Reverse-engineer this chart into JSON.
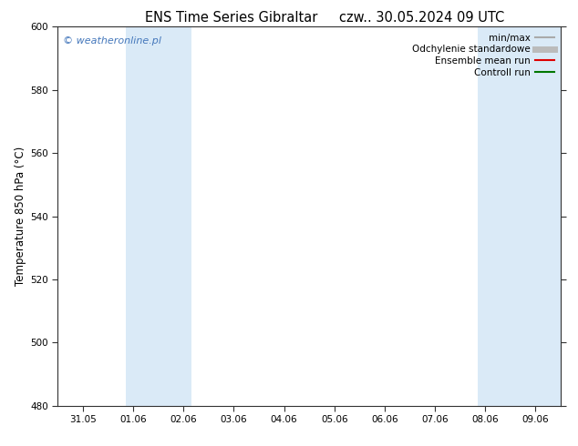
{
  "title_left": "ENS Time Series Gibraltar",
  "title_right": "czw.. 30.05.2024 09 UTC",
  "ylabel": "Temperature 850 hPa (°C)",
  "ylim": [
    480,
    600
  ],
  "yticks": [
    480,
    500,
    520,
    540,
    560,
    580,
    600
  ],
  "x_tick_labels": [
    "31.05",
    "01.06",
    "02.06",
    "03.06",
    "04.06",
    "05.06",
    "06.06",
    "07.06",
    "08.06",
    "09.06"
  ],
  "x_tick_positions": [
    0,
    1,
    2,
    3,
    4,
    5,
    6,
    7,
    8,
    9
  ],
  "xlim": [
    -0.5,
    9.5
  ],
  "background_color": "#ffffff",
  "plot_bg_color": "#ffffff",
  "shaded_bands": [
    {
      "x_start": 0.85,
      "x_end": 2.15,
      "color": "#daeaf7"
    },
    {
      "x_start": 7.85,
      "x_end": 9.5,
      "color": "#daeaf7"
    }
  ],
  "watermark_text": "© weatheronline.pl",
  "watermark_color": "#4477bb",
  "legend_entries": [
    {
      "label": "min/max",
      "color": "#aaaaaa",
      "lw": 1.5
    },
    {
      "label": "Odchylenie standardowe",
      "color": "#bbbbbb",
      "lw": 5
    },
    {
      "label": "Ensemble mean run",
      "color": "#dd0000",
      "lw": 1.5
    },
    {
      "label": "Controll run",
      "color": "#007700",
      "lw": 1.5
    }
  ],
  "title_fontsize": 10.5,
  "axis_label_fontsize": 8.5,
  "tick_fontsize": 7.5,
  "watermark_fontsize": 8,
  "legend_fontsize": 7.5
}
